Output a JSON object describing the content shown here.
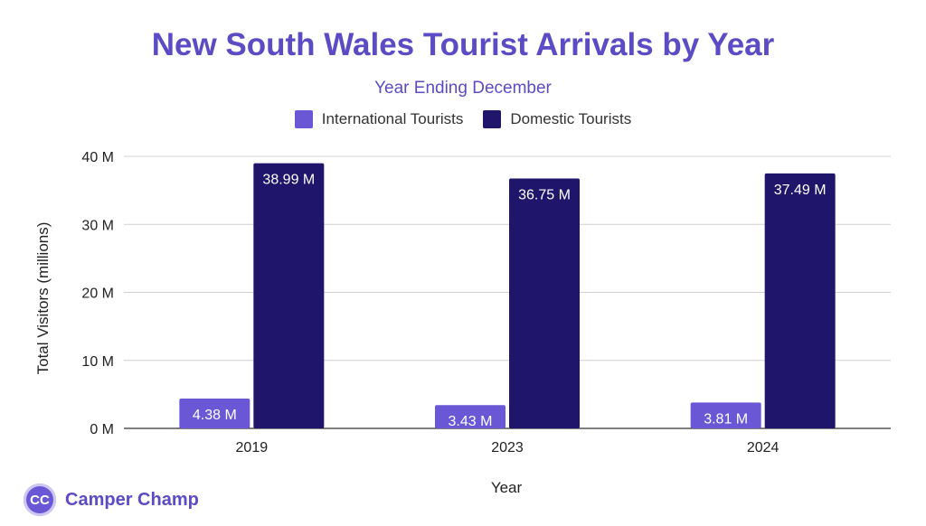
{
  "chart_data": {
    "type": "bar",
    "title": "New South Wales Tourist Arrivals by Year",
    "subtitle": "Year Ending December",
    "xlabel": "Year",
    "ylabel": "Total Visitors (millions)",
    "categories": [
      "2019",
      "2023",
      "2024"
    ],
    "series": [
      {
        "name": "International Tourists",
        "values": [
          4.38,
          3.43,
          3.81
        ],
        "labels": [
          "4.38 M",
          "3.43 M",
          "3.81 M"
        ],
        "color": "#6a57d6"
      },
      {
        "name": "Domestic Tourists",
        "values": [
          38.99,
          36.75,
          37.49
        ],
        "labels": [
          "38.99 M",
          "36.75 M",
          "37.49 M"
        ],
        "color": "#1f156b"
      }
    ],
    "ylim": [
      0,
      40
    ],
    "yticks": [
      {
        "value": 0,
        "label": "0 M"
      },
      {
        "value": 10,
        "label": "10 M"
      },
      {
        "value": 20,
        "label": "20 M"
      },
      {
        "value": 30,
        "label": "30 M"
      },
      {
        "value": 40,
        "label": "40 M"
      }
    ],
    "grid": true,
    "legend_position": "top"
  },
  "branding": {
    "logo_initials": "CC",
    "brand_name": "Camper Champ",
    "brand_color": "#5b4bc4"
  }
}
